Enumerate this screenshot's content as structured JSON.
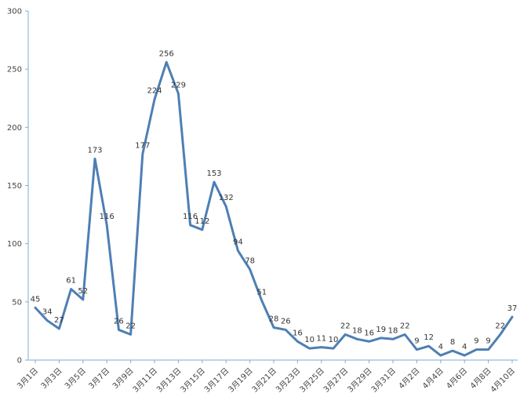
{
  "chart_data": {
    "type": "line",
    "title": "",
    "xlabel": "",
    "ylabel": "",
    "ylim": [
      0,
      300
    ],
    "y_ticks": [
      0,
      50,
      100,
      150,
      200,
      250,
      300
    ],
    "grid": false,
    "legend": "none",
    "series_color": "#4e7fb4",
    "axis_color": "#7eaed6",
    "x_tick_labels": [
      "3月1日",
      "3月3日",
      "3月5日",
      "3月7日",
      "3月9日",
      "3月11日",
      "3月13日",
      "3月15日",
      "3月17日",
      "3月19日",
      "3月21日",
      "3月23日",
      "3月25日",
      "3月27日",
      "3月29日",
      "3月31日",
      "4月2日",
      "4月4日",
      "4月6日",
      "4月8日",
      "4月10日"
    ],
    "series": [
      {
        "values": [
          45,
          34,
          27,
          61,
          52,
          173,
          116,
          26,
          22,
          177,
          224,
          256,
          229,
          116,
          112,
          153,
          132,
          94,
          78,
          51,
          28,
          26,
          16,
          10,
          11,
          10,
          22,
          18,
          16,
          19,
          18,
          22,
          9,
          12,
          4,
          8,
          4,
          9,
          9,
          22,
          37
        ]
      }
    ]
  }
}
